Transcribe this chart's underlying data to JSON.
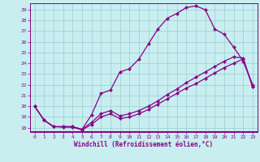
{
  "xlabel": "Windchill (Refroidissement éolien,°C)",
  "background_color": "#c8eef0",
  "line_color": "#880088",
  "grid_color": "#99cccc",
  "xlim_min": -0.5,
  "xlim_max": 23.5,
  "ylim_min": 17.6,
  "ylim_max": 29.6,
  "xticks": [
    0,
    1,
    2,
    3,
    4,
    5,
    6,
    7,
    8,
    9,
    10,
    11,
    12,
    13,
    14,
    15,
    16,
    17,
    18,
    19,
    20,
    21,
    22,
    23
  ],
  "yticks": [
    18,
    19,
    20,
    21,
    22,
    23,
    24,
    25,
    26,
    27,
    28,
    29
  ],
  "line1_x": [
    0,
    1,
    2,
    3,
    4,
    5,
    6,
    7,
    8,
    9,
    10,
    11,
    12,
    13,
    14,
    15,
    16,
    17,
    18,
    19,
    20,
    21,
    22,
    23
  ],
  "line1_y": [
    20.0,
    18.7,
    18.1,
    18.1,
    18.1,
    17.85,
    19.2,
    21.2,
    21.5,
    23.2,
    23.5,
    24.4,
    25.8,
    27.2,
    28.2,
    28.65,
    29.2,
    29.35,
    29.0,
    27.2,
    26.7,
    25.5,
    24.2,
    22.0
  ],
  "line2_x": [
    0,
    1,
    2,
    3,
    4,
    5,
    6,
    7,
    8,
    9,
    10,
    11,
    12,
    13,
    14,
    15,
    16,
    17,
    18,
    19,
    20,
    21,
    22,
    23
  ],
  "line2_y": [
    20.0,
    18.7,
    18.1,
    18.1,
    18.1,
    17.85,
    18.5,
    19.3,
    19.6,
    19.1,
    19.3,
    19.6,
    20.0,
    20.5,
    21.1,
    21.6,
    22.2,
    22.7,
    23.2,
    23.7,
    24.2,
    24.6,
    24.5,
    21.8
  ],
  "line3_x": [
    0,
    1,
    2,
    3,
    4,
    5,
    6,
    7,
    8,
    9,
    10,
    11,
    12,
    13,
    14,
    15,
    16,
    17,
    18,
    19,
    20,
    21,
    22,
    23
  ],
  "line3_y": [
    20.0,
    18.7,
    18.1,
    18.05,
    18.05,
    17.8,
    18.3,
    19.0,
    19.3,
    18.85,
    19.0,
    19.3,
    19.7,
    20.2,
    20.7,
    21.2,
    21.7,
    22.1,
    22.6,
    23.1,
    23.6,
    24.0,
    24.4,
    21.8
  ]
}
